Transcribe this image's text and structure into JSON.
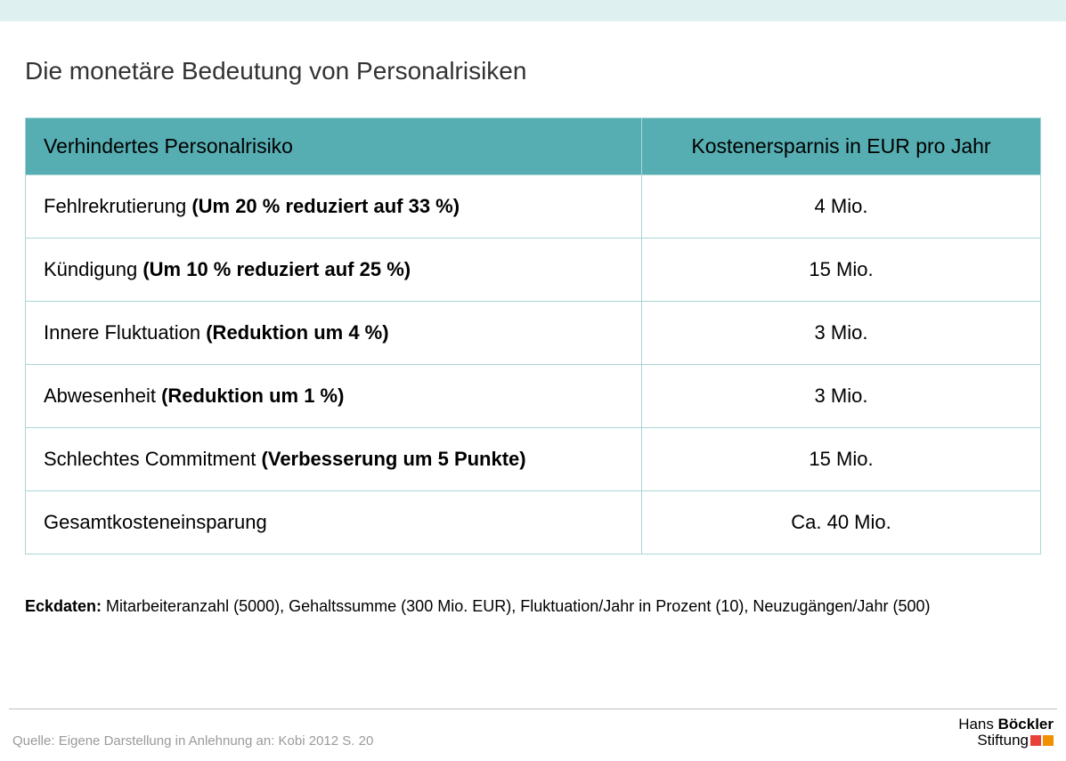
{
  "colors": {
    "top_bar": "#dff0f0",
    "header_bg": "#56aeb2",
    "border": "#a9d5d7",
    "text": "#000000",
    "title_text": "#333333",
    "source_text": "#9a9a9a",
    "logo_sq1": "#e8413c",
    "logo_sq2": "#f29100"
  },
  "title": "Die monetäre Bedeutung von Personalrisiken",
  "table": {
    "type": "table",
    "columns": [
      {
        "label": "Verhindertes Personalrisiko",
        "align": "left"
      },
      {
        "label": "Kostenersparnis in EUR pro Jahr",
        "align": "center"
      }
    ],
    "rows": [
      {
        "label": "Fehlrekrutierung ",
        "detail": "(Um 20 % reduziert auf 33 %)",
        "value": "4 Mio."
      },
      {
        "label": "Kündigung ",
        "detail": "(Um 10 % reduziert auf 25 %)",
        "value": "15 Mio."
      },
      {
        "label": "Innere Fluktuation ",
        "detail": "(Reduktion um 4 %)",
        "value": "3 Mio."
      },
      {
        "label": "Abwesenheit ",
        "detail": "(Reduktion um 1 %)",
        "value": "3 Mio."
      },
      {
        "label": "Schlechtes Commitment ",
        "detail": "(Verbesserung um 5 Punkte)",
        "value": "15 Mio."
      },
      {
        "label": "Gesamtkosteneinsparung",
        "detail": "",
        "value": "Ca. 40 Mio."
      }
    ]
  },
  "eckdaten": {
    "label": "Eckdaten:",
    "text": " Mitarbeiteranzahl (5000), Gehaltssumme (300 Mio. EUR), Fluktuation/Jahr in Prozent (10), Neuzugängen/Jahr (500)"
  },
  "source": "Quelle: Eigene Darstellung in Anlehnung an: Kobi 2012 S. 20",
  "logo": {
    "line1a": "Hans ",
    "line1b": "Böckler",
    "line2": "Stiftung"
  }
}
